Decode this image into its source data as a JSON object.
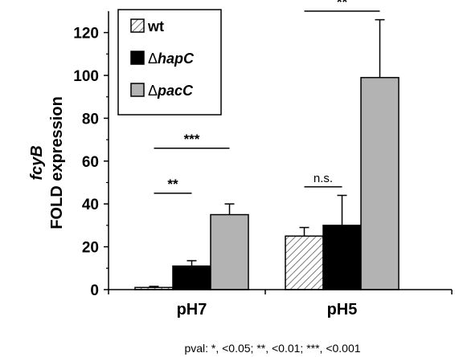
{
  "chart_data": {
    "type": "bar",
    "ylabel_line1": "fcyB",
    "ylabel_line2": "FOLD expression",
    "ylim": [
      0,
      130
    ],
    "yticks": [
      0,
      20,
      40,
      60,
      80,
      100,
      120
    ],
    "categories": [
      "pH7",
      "pH5"
    ],
    "series": [
      {
        "name": "wt",
        "values": [
          1,
          25
        ],
        "errors": [
          0.5,
          4
        ],
        "pattern": "hatch",
        "color": "#ffffff"
      },
      {
        "name": "hapC",
        "legend_prefix": "Δ",
        "values": [
          11,
          30
        ],
        "errors": [
          2.5,
          14
        ],
        "pattern": "solid",
        "color": "#000000"
      },
      {
        "name": "pacC",
        "legend_prefix": "Δ",
        "values": [
          35,
          99
        ],
        "errors": [
          5,
          27
        ],
        "pattern": "solid",
        "color": "#b3b3b3"
      }
    ],
    "annotations": [
      {
        "category": 0,
        "from_series": 0,
        "to_series": 1,
        "y": 45,
        "label": "**"
      },
      {
        "category": 0,
        "from_series": 0,
        "to_series": 2,
        "y": 66,
        "label": "***"
      },
      {
        "category": 1,
        "from_series": 0,
        "to_series": 1,
        "y": 48,
        "label": "n.s."
      },
      {
        "category": 1,
        "from_series": 0,
        "to_series": 2,
        "y": 130,
        "label": "**"
      }
    ],
    "footnote": "pval: *, <0.05; **, <0.01; ***, <0.001",
    "legend_position": "top-left"
  }
}
